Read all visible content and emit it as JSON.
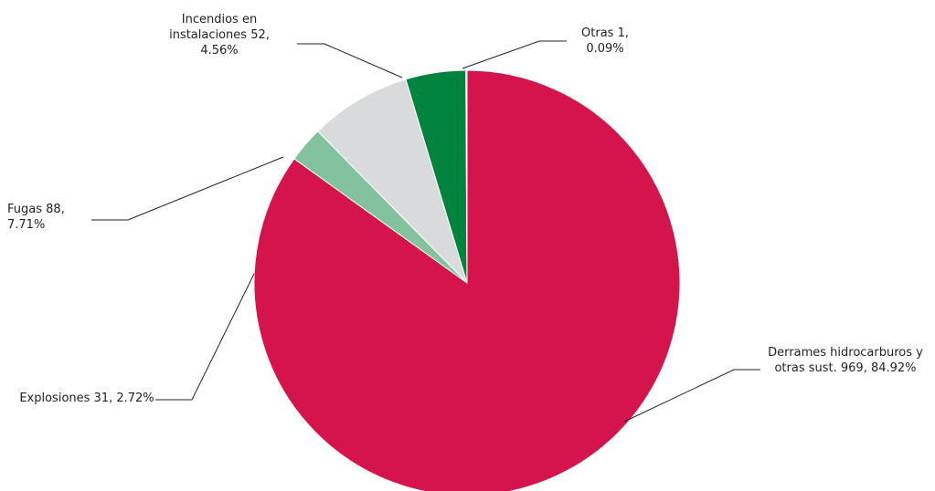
{
  "chart_data": {
    "type": "pie",
    "categories": [
      "Derrames hidrocarburos y otras sust.",
      "Explosiones",
      "Fugas",
      "Incendios en instalaciones",
      "Otras"
    ],
    "values": [
      969,
      31,
      88,
      52,
      1
    ],
    "value_labels": [
      "969, 84.92%",
      "31, 2.72%",
      "88, 7.71%",
      "52, 4.56%",
      "1, 0.09%"
    ],
    "colors": [
      "#d4144a",
      "#82c39d",
      "#d9dadb",
      "#00843d",
      "#a7a9ac"
    ]
  }
}
